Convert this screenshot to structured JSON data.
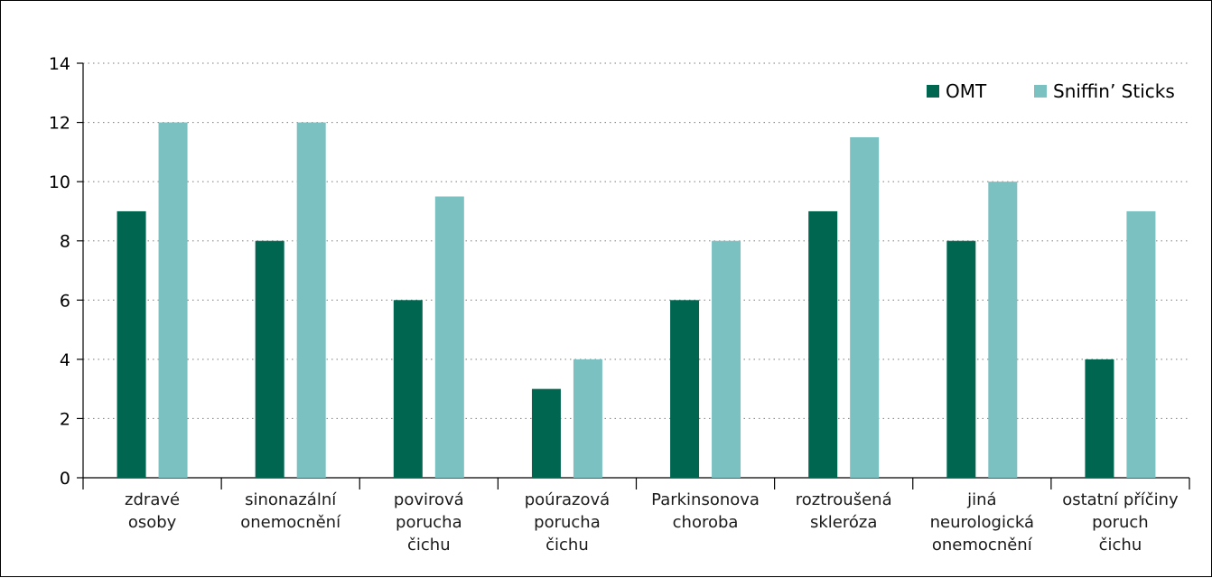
{
  "chart_data": {
    "type": "bar",
    "title": "",
    "xlabel": "",
    "ylabel": "",
    "ylim": [
      0,
      14
    ],
    "yticks": [
      0,
      2,
      4,
      6,
      8,
      10,
      12,
      14
    ],
    "grid": true,
    "legend_position": "top-right",
    "categories": [
      [
        "zdravé",
        "osoby"
      ],
      [
        "sinonazální",
        "onemocnění"
      ],
      [
        "povirová",
        "porucha",
        "čichu"
      ],
      [
        "poúrazová",
        "porucha",
        "čichu"
      ],
      [
        "Parkinsonova",
        "choroba"
      ],
      [
        "roztroušená",
        "skleróza"
      ],
      [
        "jiná",
        "neurologická",
        "onemocnění"
      ],
      [
        "ostatní příčiny",
        "poruch",
        "čichu"
      ]
    ],
    "series": [
      {
        "name": "OMT",
        "color": "#006650",
        "values": [
          9,
          8,
          6,
          3,
          6,
          9,
          8,
          4
        ]
      },
      {
        "name": "Sniffin’ Sticks",
        "color": "#7cc1c2",
        "values": [
          12,
          12,
          9.5,
          4,
          8,
          11.5,
          10,
          9
        ]
      }
    ]
  }
}
